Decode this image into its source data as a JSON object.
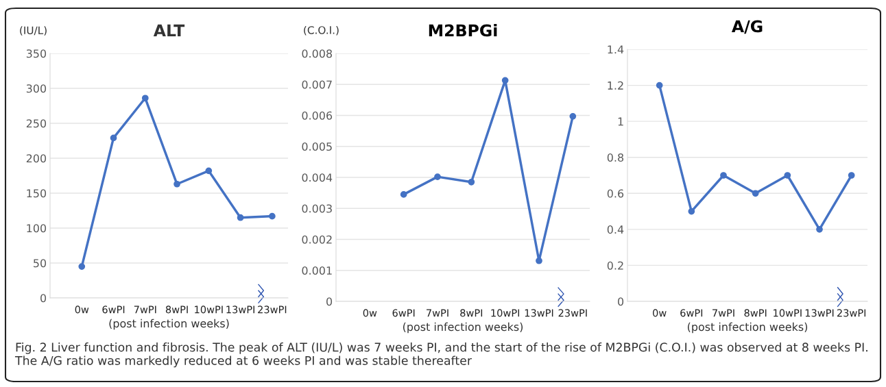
{
  "chart_data": [
    {
      "type": "line",
      "title": "ALT",
      "ylabel": "(IU/L)",
      "xlabel": "(post infection weeks)",
      "categories": [
        "0w",
        "6wPI",
        "7wPI",
        "8wPI",
        "10wPI",
        "13wPI",
        "23wPI"
      ],
      "series": [
        {
          "color": "#4472c4",
          "values": [
            45,
            229,
            286,
            163,
            182,
            115,
            117
          ]
        }
      ],
      "ylim": [
        0,
        350
      ],
      "yticks": [
        0,
        50,
        100,
        150,
        200,
        250,
        300,
        350
      ],
      "grid": "y",
      "marker": "circle",
      "line_style": "solid",
      "annotations": [
        "Fig. 2 Liver function and fibrosis. The peak of ALT (IU/L) was 7 weeks PI, and the start of the rise of M2BPGi (C.O.I.) was observed at 8 weeks PI. The A/G ratio was markedly reduced at 6 weeks PI and was stable thereafter"
      ]
    },
    {
      "type": "line",
      "title": "M2BPGi",
      "ylabel": "(C.O.I.)",
      "xlabel": "(post infection weeks)",
      "categories": [
        "0w",
        "6wPI",
        "7wPI",
        "8wPI",
        "10wPI",
        "13wPI",
        "23wPI"
      ],
      "series": [
        {
          "color": "#4472c4",
          "values": [
            null,
            0.00345,
            0.00402,
            0.00385,
            0.00713,
            0.00131,
            0.00597
          ]
        }
      ],
      "ylim": [
        0,
        0.008
      ],
      "yticks": [
        {
          "value": 0,
          "label": "0"
        },
        0.001,
        0.002,
        0.003,
        0.004,
        0.005,
        0.006,
        0.007,
        0.008
      ],
      "grid": "y",
      "marker": "circle",
      "line_style": "solid"
    },
    {
      "type": "line",
      "title": "A/G",
      "xlabel": "(post infection weeks)",
      "categories": [
        "0w",
        "6wPI",
        "7wPI",
        "8wPI",
        "10wPI",
        "13wPI",
        "23wPI"
      ],
      "series": [
        {
          "color": "#4472c4",
          "values": [
            1.2,
            0.5,
            0.7,
            0.6,
            0.7,
            0.4,
            0.7
          ]
        }
      ],
      "ylim": [
        0,
        1.4
      ],
      "yticks": [
        0,
        0.2,
        0.4,
        0.6,
        0.8,
        {
          "value": 1,
          "label": "1"
        },
        1.2,
        1.4
      ],
      "grid": "y",
      "marker": "circle",
      "line_style": "solid"
    }
  ]
}
